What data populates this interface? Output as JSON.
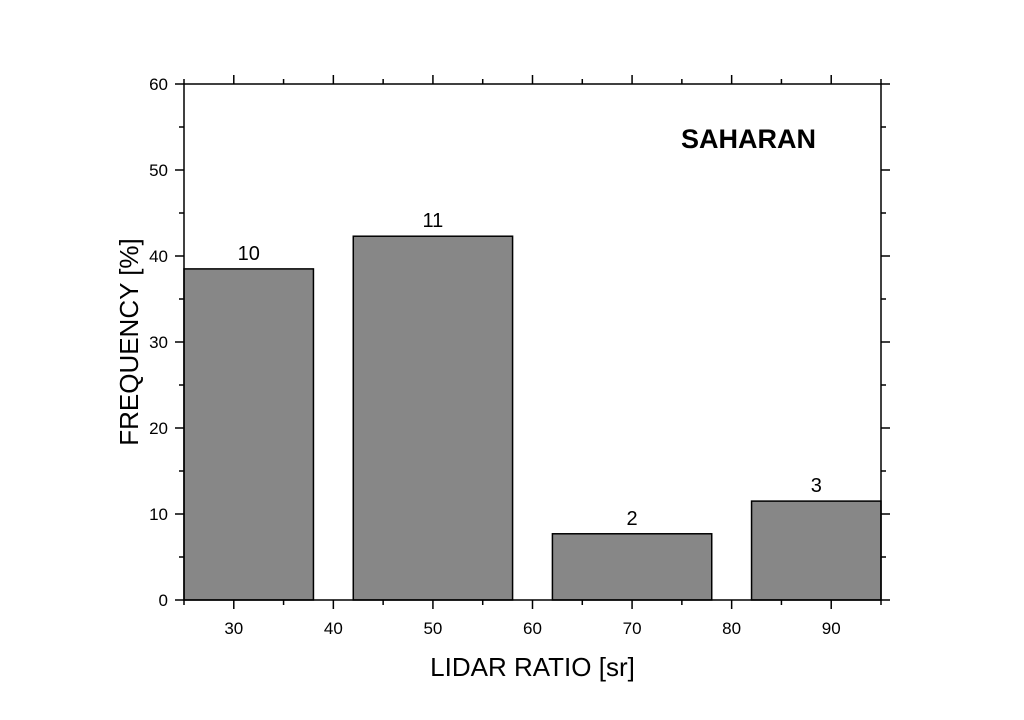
{
  "chart_data": {
    "type": "bar",
    "annotation": "SAHARAN",
    "xlabel": "LIDAR RATIO [sr]",
    "ylabel": "FREQUENCY [%]",
    "xlim": [
      25,
      95
    ],
    "ylim": [
      0,
      60
    ],
    "xticks": [
      30,
      40,
      50,
      60,
      70,
      80,
      90
    ],
    "yticks": [
      0,
      10,
      20,
      30,
      40,
      50,
      60
    ],
    "bar_color": "#878787",
    "bars": [
      {
        "x_start": 25,
        "x_end": 38,
        "value": 38.5,
        "label": "10"
      },
      {
        "x_start": 42,
        "x_end": 58,
        "value": 42.3,
        "label": "11"
      },
      {
        "x_start": 62,
        "x_end": 78,
        "value": 7.7,
        "label": "2"
      },
      {
        "x_start": 82,
        "x_end": 95,
        "value": 11.5,
        "label": "3"
      }
    ],
    "grid": false
  }
}
